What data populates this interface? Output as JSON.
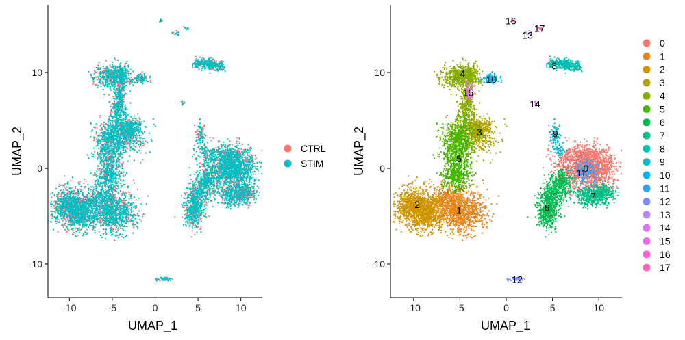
{
  "chart_data": [
    {
      "type": "scatter",
      "title": "",
      "xlabel": "UMAP_1",
      "ylabel": "UMAP_2",
      "xlim": [
        -12.5,
        12.5
      ],
      "ylim": [
        -13.5,
        17
      ],
      "xticks": [
        -10,
        -5,
        0,
        5,
        10
      ],
      "yticks": [
        -10,
        0,
        10
      ],
      "xtick_labels": [
        "-10",
        "-5",
        "0",
        "5",
        "10"
      ],
      "ytick_labels": [
        "-10",
        "0",
        "10"
      ],
      "grid": false,
      "legend_position": "right",
      "legend_title": "",
      "series": [
        {
          "name": "CTRL",
          "color": "#F8766D"
        },
        {
          "name": "STIM",
          "color": "#00BFC4"
        }
      ]
    },
    {
      "type": "scatter",
      "title": "",
      "xlabel": "UMAP_1",
      "ylabel": "UMAP_2",
      "xlim": [
        -12.5,
        12.5
      ],
      "ylim": [
        -13.5,
        17
      ],
      "xticks": [
        -10,
        -5,
        0,
        5,
        10
      ],
      "yticks": [
        -10,
        0,
        10
      ],
      "xtick_labels": [
        "-10",
        "-5",
        "0",
        "5",
        "10"
      ],
      "ytick_labels": [
        "-10",
        "0",
        "10"
      ],
      "grid": false,
      "legend_position": "right",
      "legend_title": "",
      "series": [
        {
          "name": "0",
          "color": "#F8766D",
          "label_xy": [
            8.6,
            0
          ]
        },
        {
          "name": "1",
          "color": "#E7851E",
          "label_xy": [
            -5.1,
            -4.4
          ]
        },
        {
          "name": "2",
          "color": "#D09400",
          "label_xy": [
            -9.6,
            -3.8
          ]
        },
        {
          "name": "3",
          "color": "#B2A100",
          "label_xy": [
            -2.9,
            3.8
          ]
        },
        {
          "name": "4",
          "color": "#89AC00",
          "label_xy": [
            -4.7,
            9.9
          ]
        },
        {
          "name": "5",
          "color": "#45B500",
          "label_xy": [
            -5.1,
            1.0
          ]
        },
        {
          "name": "6",
          "color": "#00BC51",
          "label_xy": [
            4.4,
            -4.1
          ]
        },
        {
          "name": "7",
          "color": "#00C087",
          "label_xy": [
            9.4,
            -2.9
          ]
        },
        {
          "name": "8",
          "color": "#00C0B2",
          "label_xy": [
            5.2,
            10.7
          ]
        },
        {
          "name": "9",
          "color": "#00BCD6",
          "label_xy": [
            5.3,
            3.6
          ]
        },
        {
          "name": "10",
          "color": "#00B3F2",
          "label_xy": [
            -1.6,
            9.3
          ]
        },
        {
          "name": "11",
          "color": "#29A3FF",
          "label_xy": [
            8.1,
            -0.5
          ]
        },
        {
          "name": "12",
          "color": "#7B8AFF",
          "label_xy": [
            1.2,
            -11.6
          ]
        },
        {
          "name": "13",
          "color": "#B385FF",
          "label_xy": [
            2.3,
            13.9
          ]
        },
        {
          "name": "14",
          "color": "#D874FD",
          "label_xy": [
            3.1,
            6.7
          ]
        },
        {
          "name": "15",
          "color": "#EF67EB",
          "label_xy": [
            -4.1,
            7.9
          ]
        },
        {
          "name": "16",
          "color": "#FD61D3",
          "label_xy": [
            0.5,
            15.4
          ]
        },
        {
          "name": "17",
          "color": "#FF63B6",
          "label_xy": [
            3.6,
            14.6
          ]
        }
      ]
    }
  ]
}
